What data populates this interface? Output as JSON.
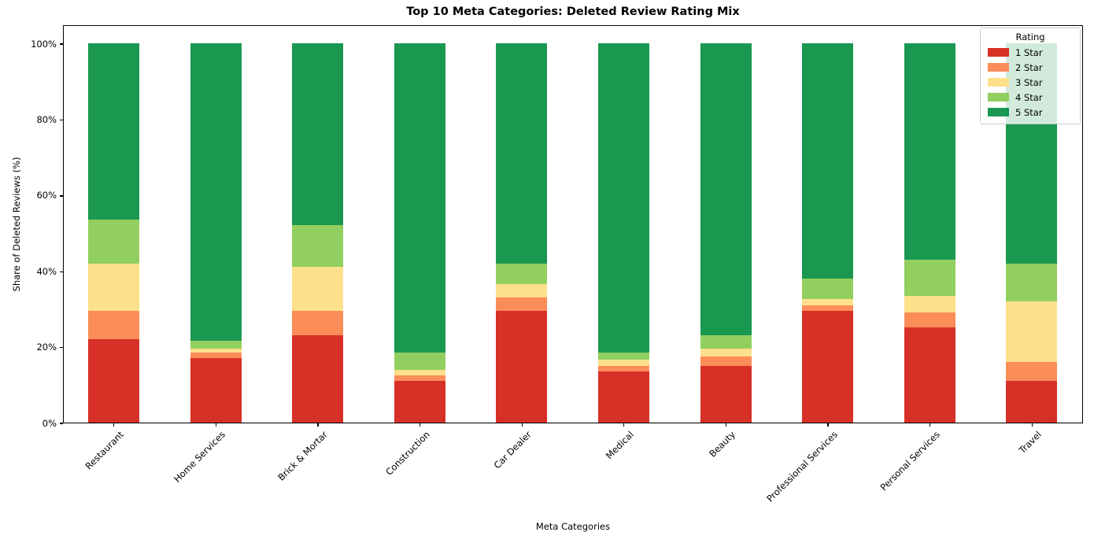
{
  "figure": {
    "title": "Top 10 Meta Categories: Deleted Review Rating Mix",
    "xlabel": "Meta Categories",
    "ylabel": "Share of Deleted Reviews (%)"
  },
  "legend": {
    "title": "Rating",
    "entries": [
      {
        "label": "1 Star",
        "color": "#d73027"
      },
      {
        "label": "2 Star",
        "color": "#fc8d59"
      },
      {
        "label": "3 Star",
        "color": "#fee08b"
      },
      {
        "label": "4 Star",
        "color": "#91cf60"
      },
      {
        "label": "5 Star",
        "color": "#1a9850"
      }
    ]
  },
  "chart_data": {
    "type": "bar",
    "stacked": true,
    "units": "percent",
    "title": "Top 10 Meta Categories: Deleted Review Rating Mix",
    "xlabel": "Meta Categories",
    "ylabel": "Share of Deleted Reviews (%)",
    "categories": [
      "Restaurant",
      "Home Services",
      "Brick & Mortar",
      "Construction",
      "Car Dealer",
      "Medical",
      "Beauty",
      "Professional Services",
      "Personal Services",
      "Travel"
    ],
    "series": [
      {
        "name": "1 Star",
        "color": "#d73027",
        "values": [
          22,
          17,
          23,
          11,
          29.5,
          13.5,
          15,
          29.5,
          25,
          11
        ]
      },
      {
        "name": "2 Star",
        "color": "#fc8d59",
        "values": [
          7.5,
          1.5,
          6.5,
          1.5,
          3.5,
          1.5,
          2.5,
          1.5,
          4,
          5
        ]
      },
      {
        "name": "3 Star",
        "color": "#fee08b",
        "values": [
          12.5,
          1,
          11.5,
          1.5,
          3.5,
          1.5,
          2,
          1.5,
          4.5,
          16
        ]
      },
      {
        "name": "4 Star",
        "color": "#91cf60",
        "values": [
          11.5,
          2,
          11,
          4.5,
          5.5,
          2,
          3.5,
          5.5,
          9.5,
          10
        ]
      },
      {
        "name": "5 Star",
        "color": "#1a9850",
        "values": [
          46.5,
          78.5,
          48,
          81.5,
          58,
          81.5,
          77,
          62,
          57,
          58
        ]
      }
    ],
    "ylim": [
      0,
      105
    ],
    "ytick_values": [
      0,
      20,
      40,
      60,
      80,
      100
    ],
    "ytick_labels": [
      "0%",
      "20%",
      "40%",
      "60%",
      "80%",
      "100%"
    ],
    "legend_position": "upper right",
    "legend_title": "Rating",
    "grid": false
  }
}
